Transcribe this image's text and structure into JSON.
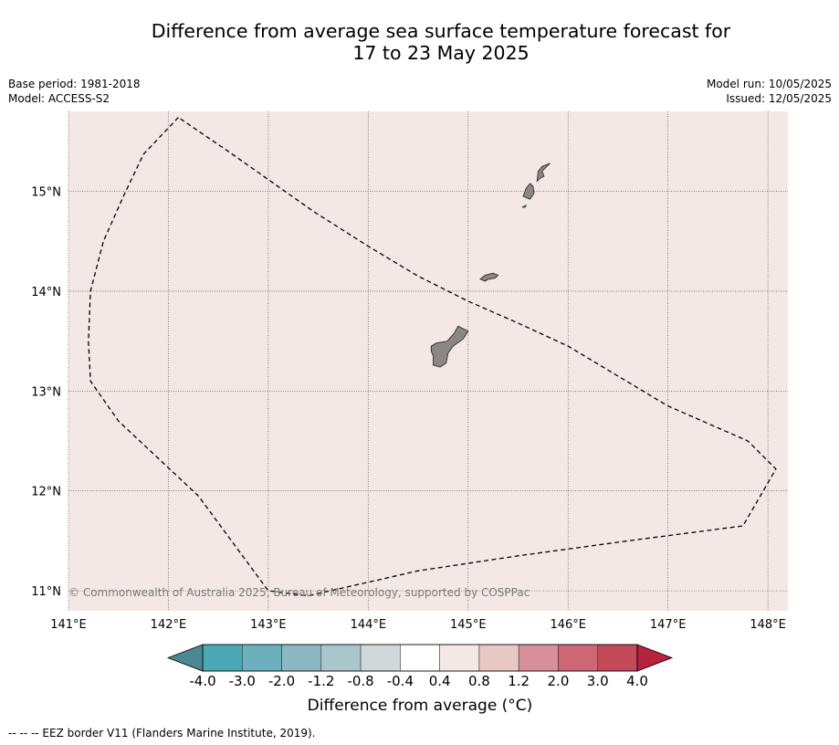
{
  "title": {
    "line1": "Difference from average sea surface temperature forecast for",
    "line2": "17 to 23 May 2025"
  },
  "meta_left": {
    "base_period": "Base period: 1981-2018",
    "model": "Model: ACCESS-S2"
  },
  "meta_right": {
    "model_run": "Model run: 10/05/2025",
    "issued": "Issued: 12/05/2025"
  },
  "map": {
    "lon_range": [
      141.0,
      148.2
    ],
    "lat_range": [
      10.8,
      15.8
    ],
    "background_color": "#f4e8e6",
    "x_ticks": [
      {
        "value": 141,
        "label": "141°E"
      },
      {
        "value": 142,
        "label": "142°E"
      },
      {
        "value": 143,
        "label": "143°E"
      },
      {
        "value": 144,
        "label": "144°E"
      },
      {
        "value": 145,
        "label": "145°E"
      },
      {
        "value": 146,
        "label": "146°E"
      },
      {
        "value": 147,
        "label": "147°E"
      },
      {
        "value": 148,
        "label": "148°E"
      }
    ],
    "y_ticks": [
      {
        "value": 15,
        "label": "15°N"
      },
      {
        "value": 14,
        "label": "14°N"
      },
      {
        "value": 13,
        "label": "13°N"
      },
      {
        "value": 12,
        "label": "12°N"
      },
      {
        "value": 11,
        "label": "11°N"
      }
    ],
    "eez_border": [
      [
        142.1,
        15.74
      ],
      [
        141.75,
        15.37
      ],
      [
        141.55,
        14.95
      ],
      [
        141.35,
        14.5
      ],
      [
        141.22,
        14.0
      ],
      [
        141.2,
        13.5
      ],
      [
        141.22,
        13.1
      ],
      [
        141.5,
        12.7
      ],
      [
        142.3,
        11.95
      ],
      [
        143.0,
        11.0
      ],
      [
        143.4,
        10.95
      ],
      [
        144.5,
        11.2
      ],
      [
        145.5,
        11.35
      ],
      [
        146.6,
        11.5
      ],
      [
        147.75,
        11.65
      ],
      [
        148.08,
        12.22
      ],
      [
        147.8,
        12.5
      ],
      [
        147.0,
        12.85
      ],
      [
        146.5,
        13.15
      ],
      [
        146.0,
        13.45
      ],
      [
        145.5,
        13.68
      ],
      [
        145.0,
        13.9
      ],
      [
        144.5,
        14.15
      ],
      [
        144.0,
        14.45
      ],
      [
        143.45,
        14.8
      ],
      [
        142.6,
        15.4
      ],
      [
        142.1,
        15.74
      ]
    ],
    "land_color": "#8c8684",
    "islands": [
      {
        "name": "Guam",
        "points": [
          [
            144.63,
            13.45
          ],
          [
            144.68,
            13.48
          ],
          [
            144.79,
            13.5
          ],
          [
            144.86,
            13.58
          ],
          [
            144.9,
            13.65
          ],
          [
            144.96,
            13.62
          ],
          [
            145.0,
            13.6
          ],
          [
            144.95,
            13.52
          ],
          [
            144.85,
            13.45
          ],
          [
            144.8,
            13.38
          ],
          [
            144.78,
            13.28
          ],
          [
            144.72,
            13.24
          ],
          [
            144.65,
            13.26
          ],
          [
            144.65,
            13.35
          ],
          [
            144.63,
            13.4
          ]
        ]
      },
      {
        "name": "Rota",
        "points": [
          [
            145.12,
            14.12
          ],
          [
            145.17,
            14.16
          ],
          [
            145.25,
            14.18
          ],
          [
            145.3,
            14.16
          ],
          [
            145.27,
            14.13
          ],
          [
            145.2,
            14.12
          ],
          [
            145.17,
            14.1
          ]
        ]
      },
      {
        "name": "Tinian",
        "points": [
          [
            145.55,
            14.95
          ],
          [
            145.58,
            15.03
          ],
          [
            145.62,
            15.08
          ],
          [
            145.65,
            15.05
          ],
          [
            145.66,
            14.98
          ],
          [
            145.62,
            14.92
          ]
        ]
      },
      {
        "name": "Saipan",
        "points": [
          [
            145.69,
            15.1
          ],
          [
            145.7,
            15.2
          ],
          [
            145.74,
            15.25
          ],
          [
            145.82,
            15.28
          ],
          [
            145.74,
            15.2
          ],
          [
            145.76,
            15.15
          ],
          [
            145.72,
            15.13
          ]
        ]
      },
      {
        "name": "Aguijan",
        "points": [
          [
            145.54,
            14.84
          ],
          [
            145.58,
            14.86
          ],
          [
            145.57,
            14.84
          ]
        ]
      }
    ],
    "copyright": "© Commonwealth of Australia 2025, Bureau of Meteorology, supported by COSPPac"
  },
  "colorbar": {
    "title": "Difference from average (°C)",
    "under_color": "#4a8992",
    "over_color": "#b7223d",
    "bins": [
      {
        "color": "#4aa7b4"
      },
      {
        "color": "#6cb0bd"
      },
      {
        "color": "#8ab7c2"
      },
      {
        "color": "#a9c6cb"
      },
      {
        "color": "#d2d8da"
      },
      {
        "color": "#ffffff"
      },
      {
        "color": "#f4e8e6"
      },
      {
        "color": "#e9c7c3"
      },
      {
        "color": "#d98f99"
      },
      {
        "color": "#cd6773"
      },
      {
        "color": "#c24a59"
      }
    ],
    "tick_labels": [
      "-4.0",
      "-3.0",
      "-2.0",
      "-1.2",
      "-0.8",
      "-0.4",
      "0.4",
      "0.8",
      "1.2",
      "2.0",
      "3.0",
      "4.0"
    ]
  },
  "footer": "--  --  -- EEZ border V11 (Flanders Marine Institute, 2019)."
}
